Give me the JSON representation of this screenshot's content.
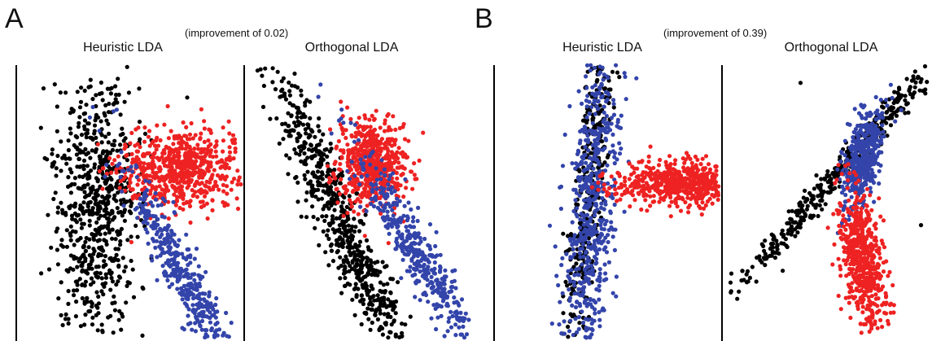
{
  "figure": {
    "panels": [
      {
        "letter": "A",
        "improvement": "(improvement of 0.02)"
      },
      {
        "letter": "B",
        "improvement": "(improvement of 0.39)"
      }
    ]
  },
  "chart_data": [
    {
      "type": "scatter",
      "title": "Heuristic LDA",
      "xlabel": "",
      "ylabel": "",
      "axes": "left-axis-only",
      "grid": false,
      "ticks": false,
      "series": [
        {
          "color": "#000000",
          "shape": "vertical-cloud",
          "center": [
            -0.6,
            0.45
          ],
          "spread": [
            0.35,
            1.2
          ],
          "corr": 0.0,
          "n": 700,
          "outliers": [
            [
              -1.3,
              -1.3
            ],
            [
              -0.2,
              -1.5
            ],
            [
              -0.4,
              -1.6
            ],
            [
              -0.2,
              2.3
            ]
          ]
        },
        {
          "color": "#ee2222",
          "shape": "blob",
          "center": [
            0.9,
            -0.25
          ],
          "spread": [
            0.55,
            0.33
          ],
          "corr": 0.0,
          "n": 650,
          "outliers": [
            [
              1.9,
              0.25
            ]
          ]
        },
        {
          "color": "#3344aa",
          "shape": "diagonal-streak",
          "center": [
            0.95,
            1.55
          ],
          "spread": [
            0.18,
            0.95
          ],
          "corr": 0.55,
          "n": 450
        }
      ]
    },
    {
      "type": "scatter",
      "title": "Orthogonal LDA",
      "xlabel": "",
      "ylabel": "",
      "axes": "left-axis-only",
      "grid": false,
      "ticks": false,
      "series": [
        {
          "color": "#000000",
          "shape": "diagonal-streak",
          "center": [
            -0.3,
            0.7
          ],
          "spread": [
            0.22,
            1.5
          ],
          "corr": 0.45,
          "n": 700,
          "outliers": [
            [
              -0.9,
              -1.0
            ],
            [
              -0.7,
              -1.1
            ]
          ]
        },
        {
          "color": "#ee2222",
          "shape": "blob",
          "center": [
            0.25,
            -0.35
          ],
          "spread": [
            0.3,
            0.38
          ],
          "corr": 0.0,
          "n": 600
        },
        {
          "color": "#3344aa",
          "shape": "diagonal-streak",
          "center": [
            1.1,
            1.25
          ],
          "spread": [
            0.2,
            0.9
          ],
          "corr": 0.6,
          "n": 450
        }
      ]
    },
    {
      "type": "scatter",
      "title": "Heuristic LDA",
      "xlabel": "",
      "ylabel": "",
      "axes": "left-axis-only",
      "grid": false,
      "ticks": false,
      "series": [
        {
          "color": "#000000",
          "shape": "vertical-streak",
          "center": [
            -0.35,
            0.2
          ],
          "spread": [
            0.12,
            1.6
          ],
          "corr": -0.12,
          "n": 400,
          "outliers": [
            [
              0.2,
              -1.8
            ],
            [
              -0.8,
              1.9
            ]
          ]
        },
        {
          "color": "#3344aa",
          "shape": "vertical-streak",
          "center": [
            -0.3,
            0.45
          ],
          "spread": [
            0.22,
            1.6
          ],
          "corr": -0.08,
          "n": 650
        },
        {
          "color": "#ee2222",
          "shape": "horizontal-blob",
          "center": [
            1.3,
            0.0
          ],
          "spread": [
            0.6,
            0.18
          ],
          "corr": 0.0,
          "n": 650
        }
      ]
    },
    {
      "type": "scatter",
      "title": "Orthogonal LDA",
      "xlabel": "",
      "ylabel": "",
      "axes": "left-axis-only",
      "grid": false,
      "ticks": false,
      "series": [
        {
          "color": "#000000",
          "shape": "diagonal-streak",
          "center": [
            0.6,
            -0.55
          ],
          "spread": [
            0.15,
            1.4
          ],
          "corr": -1.0,
          "n": 500,
          "outliers": [
            [
              -0.5,
              -1.7
            ],
            [
              1.85,
              0.7
            ]
          ]
        },
        {
          "color": "#3344aa",
          "shape": "blob",
          "center": [
            0.7,
            -0.4
          ],
          "spread": [
            0.18,
            0.45
          ],
          "corr": -0.25,
          "n": 450
        },
        {
          "color": "#ee2222",
          "shape": "blob",
          "center": [
            0.7,
            1.25
          ],
          "spread": [
            0.2,
            0.6
          ],
          "corr": 0.15,
          "n": 550
        }
      ]
    }
  ]
}
